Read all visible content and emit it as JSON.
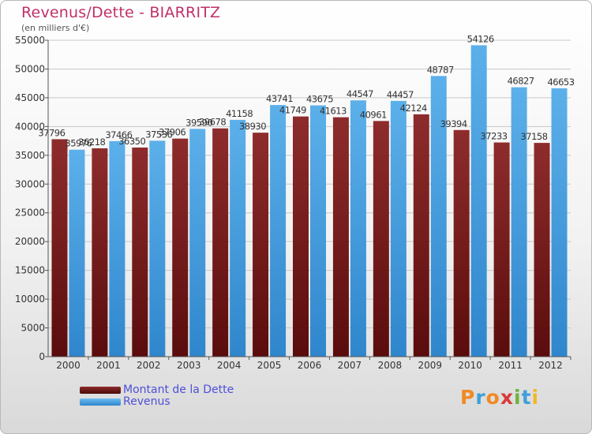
{
  "chart_data": {
    "type": "bar",
    "title": "Revenus/Dette - BIARRITZ",
    "subtitle": "(en milliers d'€)",
    "categories": [
      "2000",
      "2001",
      "2002",
      "2003",
      "2004",
      "2005",
      "2006",
      "2007",
      "2008",
      "2009",
      "2010",
      "2011",
      "2012"
    ],
    "series": [
      {
        "name": "Montant de la Dette",
        "color": "#7a1f1f",
        "values": [
          37796,
          36218,
          36350,
          37906,
          39678,
          38930,
          41749,
          41613,
          40961,
          42124,
          39394,
          37233,
          37158
        ],
        "labels": [
          "37796",
          "36218",
          "36350",
          "37906",
          "39678",
          "38930",
          "41749",
          "41613",
          "40961",
          "42124",
          "39394",
          "37233",
          "37158"
        ]
      },
      {
        "name": "Revenus",
        "color": "#4fa3e0",
        "values": [
          35976,
          37466,
          37536,
          39590,
          41158,
          43741,
          43675,
          44547,
          44457,
          48787,
          54126,
          46827,
          46653
        ],
        "labels": [
          "35976",
          "37466",
          "37536",
          "39590",
          "41158",
          "43741",
          "43675",
          "44547",
          "44457",
          "48787",
          "54126",
          "46827",
          "46653"
        ]
      }
    ],
    "ylim": [
      0,
      55000
    ],
    "yticks": [
      0,
      5000,
      10000,
      15000,
      20000,
      25000,
      30000,
      35000,
      40000,
      45000,
      50000,
      55000
    ],
    "grid": true,
    "legend_position": "bottom-left"
  },
  "brand": {
    "text": "Proxiti",
    "letters": [
      "P",
      "r",
      "o",
      "x",
      "i",
      "t",
      "i"
    ],
    "colors": [
      "#f08a24",
      "#3fa0d8",
      "#f08a24",
      "#d83a3a",
      "#6cb33f",
      "#3fa0d8",
      "#f0b824"
    ]
  }
}
